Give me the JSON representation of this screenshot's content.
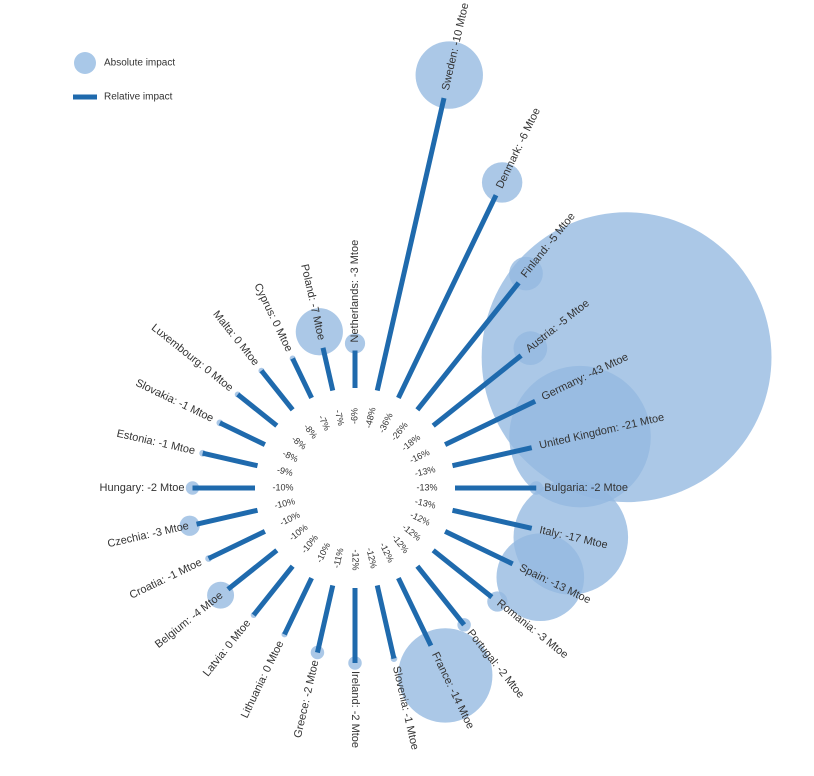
{
  "chart_data": {
    "type": "radial-bar",
    "series": [
      {
        "name": "Absolute impact",
        "color": "#93b9e0",
        "values": [
          -3,
          -10,
          -6,
          -5,
          -5,
          -43,
          -21,
          -2,
          -17,
          -13,
          -3,
          -2,
          -14,
          -1,
          -2,
          -2,
          0,
          0,
          -4,
          -1,
          -3,
          -2,
          -1,
          -1,
          0,
          0,
          0,
          -7
        ],
        "value_labels": [
          "Netherlands: -3 Mtoe",
          "Sweden: -10 Mtoe",
          "Denmark: -6 Mtoe",
          "Finland: -5 Mtoe",
          "Austria: -5 Mtoe",
          "Germany: -43 Mtoe",
          "United Kingdom: -21 Mtoe",
          "Bulgaria: -2 Mtoe",
          "Italy: -17 Mtoe",
          "Spain: -13 Mtoe",
          "Romania: -3 Mtoe",
          "Portugal: -2 Mtoe",
          "France: -14 Mtoe",
          "Slovenia: -1 Mtoe",
          "Ireland: -2 Mtoe",
          "Greece: -2 Mtoe",
          "Lithuania: 0 Mtoe",
          "Latvia: 0 Mtoe",
          "Belgium: -4 Mtoe",
          "Croatia: -1 Mtoe",
          "Czechia: -3 Mtoe",
          "Hungary: -2 Mtoe",
          "Estonia: -1 Mtoe",
          "Slovakia: -1 Mtoe",
          "Luxembourg: 0 Mtoe",
          "Malta: 0 Mtoe",
          "Cyprus: 0 Mtoe",
          "Poland: -7 Mtoe"
        ]
      },
      {
        "name": "Relative impact",
        "color": "#1f6aad",
        "values": [
          -6,
          -48,
          -36,
          -26,
          -18,
          -16,
          -13,
          -13,
          -13,
          -12,
          -12,
          -12,
          -12,
          -12,
          -12,
          -11,
          -10,
          -10,
          -10,
          -10,
          -10,
          -10,
          -9,
          -8,
          -8,
          -8,
          -7,
          -7
        ],
        "value_labels": [
          "-6%",
          "-48%",
          "-36%",
          "-26%",
          "-18%",
          "-16%",
          "-13%",
          "-13%",
          "-13%",
          "-12%",
          "-12%",
          "-12%",
          "-12%",
          "-12%",
          "-12%",
          "-11%",
          "-10%",
          "-10%",
          "-10%",
          "-10%",
          "-10%",
          "-10%",
          "-9%",
          "-8%",
          "-8%",
          "-8%",
          "-7%",
          "-7%"
        ]
      }
    ]
  }
}
